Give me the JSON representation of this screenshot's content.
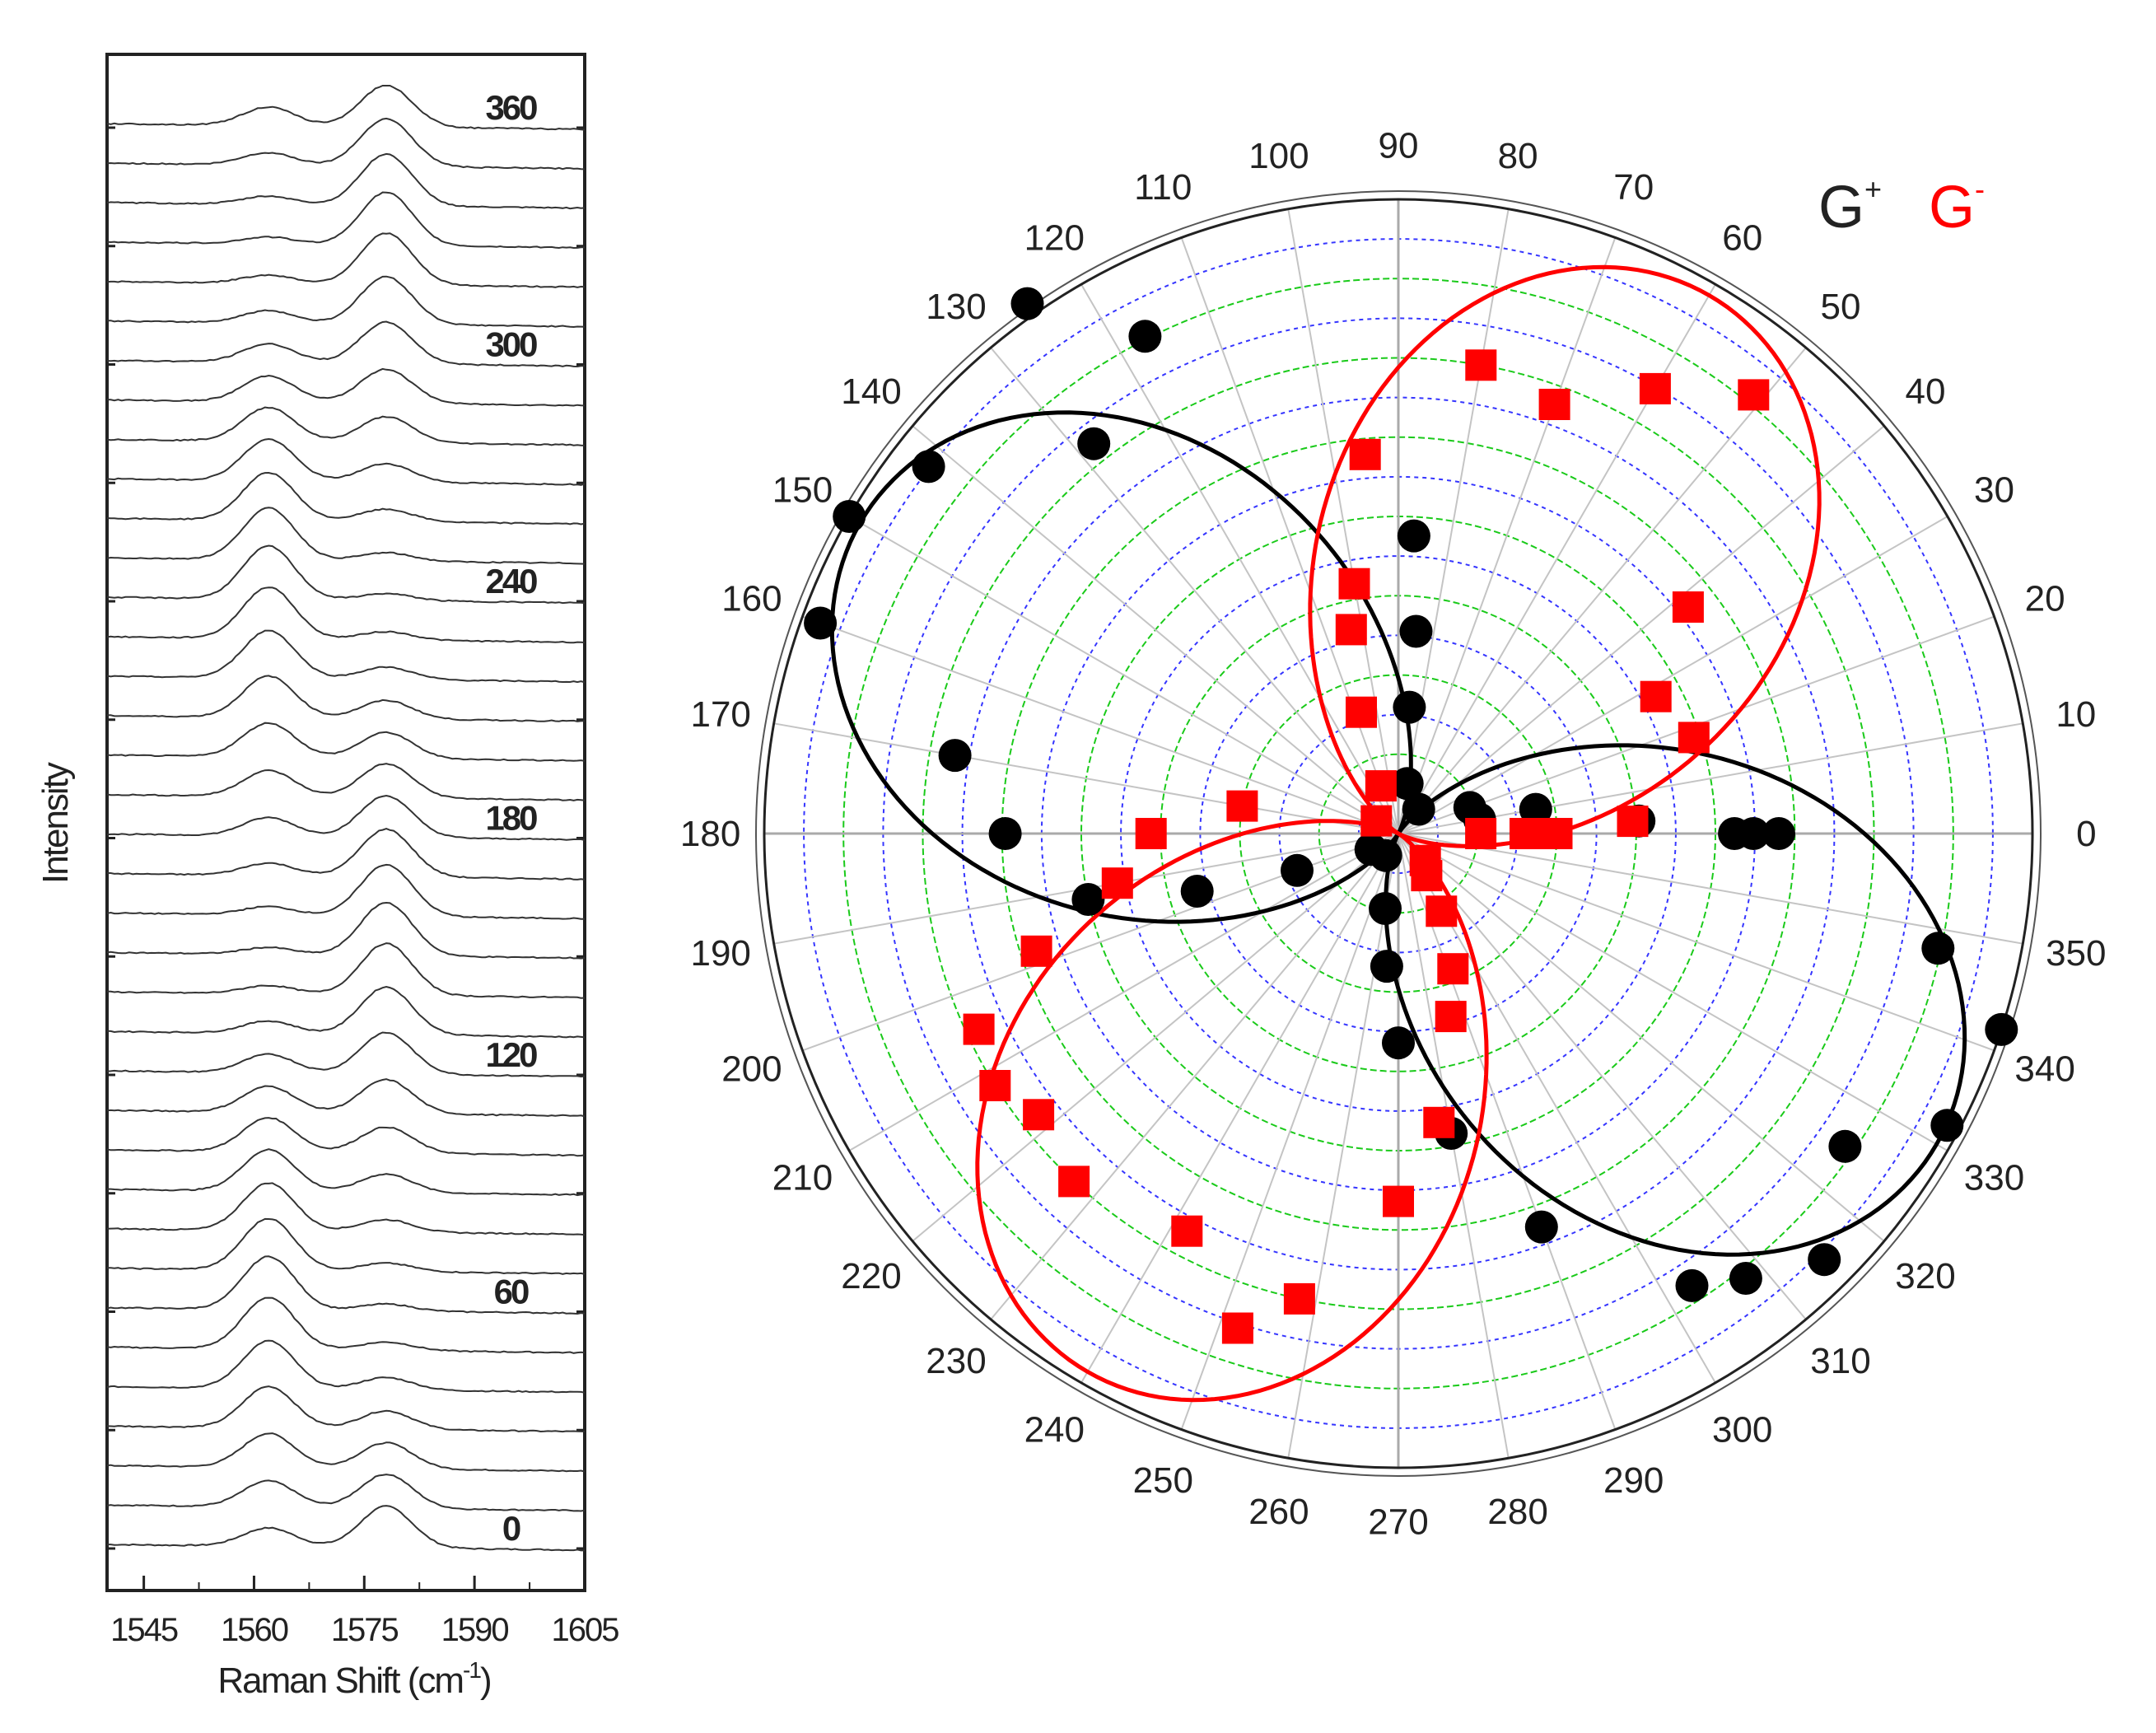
{
  "chart_data": [
    {
      "type": "line",
      "name": "raman-spectra",
      "xlabel": "Raman Shift (cm",
      "xlabel_superscript": "-1",
      "xlabel_close": ")",
      "ylabel": "Intensity",
      "xlim": [
        1540,
        1605
      ],
      "xticks": [
        1545,
        1560,
        1575,
        1590,
        1605
      ],
      "xtick_labels": [
        "1545",
        "1560",
        "1575",
        "1590",
        "1605"
      ],
      "angle_step_deg": 10,
      "angles_deg": [
        0,
        10,
        20,
        30,
        40,
        50,
        60,
        70,
        80,
        90,
        100,
        110,
        120,
        130,
        140,
        150,
        160,
        170,
        180,
        190,
        200,
        210,
        220,
        230,
        240,
        250,
        260,
        270,
        280,
        290,
        300,
        310,
        320,
        330,
        340,
        350,
        360
      ],
      "labeled_angles": [
        "0",
        "60",
        "120",
        "180",
        "240",
        "300",
        "360"
      ],
      "peaks_cm": {
        "G_minus": 1562,
        "G_plus": 1578
      },
      "peak_width_cm": 3.5,
      "baseline": 0.2,
      "intensity_scale": 1.0
    },
    {
      "type": "scatter",
      "name": "polar-intensity",
      "legend": {
        "g_plus": "G",
        "g_plus_sup": "+",
        "g_minus": "G",
        "g_minus_sup": "-",
        "g_plus_color": "#000000",
        "g_minus_color": "#ff0000"
      },
      "radial_max": 1.0,
      "rings": 16,
      "angle_labels": [
        "0",
        "10",
        "20",
        "30",
        "40",
        "50",
        "60",
        "70",
        "80",
        "90",
        "100",
        "110",
        "120",
        "130",
        "140",
        "150",
        "160",
        "170",
        "180",
        "190",
        "200",
        "210",
        "220",
        "230",
        "240",
        "250",
        "260",
        "270",
        "280",
        "290",
        "300",
        "310",
        "320",
        "330",
        "340",
        "350"
      ],
      "series": [
        {
          "name": "G+",
          "color": "#000000",
          "marker": "circle",
          "fit": {
            "amplitude": 0.98,
            "phase_deg": 150
          },
          "points": [
            [
              0,
              0.53
            ],
            [
              0,
              0.56
            ],
            [
              0,
              0.6
            ],
            [
              3,
              0.38
            ],
            [
              10,
              0.13
            ],
            [
              10,
              0.22
            ],
            [
              20,
              0.12
            ],
            [
              50,
              0.05
            ],
            [
              80,
              0.08
            ],
            [
              85,
              0.2
            ],
            [
              85,
              0.32
            ],
            [
              87,
              0.47
            ],
            [
              117,
              0.88
            ],
            [
              125,
              1.02
            ],
            [
              128,
              0.78
            ],
            [
              142,
              0.94
            ],
            [
              150,
              1.0
            ],
            [
              160,
              0.97
            ],
            [
              170,
              0.71
            ],
            [
              180,
              0.62
            ],
            [
              192,
              0.5
            ],
            [
              196,
              0.33
            ],
            [
              200,
              0.17
            ],
            [
              210,
              0.05
            ],
            [
              240,
              0.04
            ],
            [
              260,
              0.12
            ],
            [
              265,
              0.21
            ],
            [
              270,
              0.33
            ],
            [
              280,
              0.48
            ],
            [
              290,
              0.66
            ],
            [
              303,
              0.85
            ],
            [
              308,
              0.89
            ],
            [
              315,
              0.95
            ],
            [
              325,
              0.86
            ],
            [
              332,
              0.98
            ],
            [
              342,
              1.0
            ],
            [
              348,
              0.87
            ]
          ]
        },
        {
          "name": "G-",
          "color": "#ff0000",
          "marker": "square",
          "fit": {
            "amplitude": 0.98,
            "phase_deg": 60
          },
          "points": [
            [
              0,
              0.13
            ],
            [
              0,
              0.2
            ],
            [
              0,
              0.23
            ],
            [
              0,
              0.25
            ],
            [
              3,
              0.37
            ],
            [
              18,
              0.49
            ],
            [
              28,
              0.46
            ],
            [
              38,
              0.58
            ],
            [
              51,
              0.89
            ],
            [
              60,
              0.81
            ],
            [
              70,
              0.72
            ],
            [
              80,
              0.75
            ],
            [
              95,
              0.6
            ],
            [
              100,
              0.4
            ],
            [
              103,
              0.33
            ],
            [
              107,
              0.2
            ],
            [
              110,
              0.08
            ],
            [
              150,
              0.04
            ],
            [
              170,
              0.25
            ],
            [
              180,
              0.39
            ],
            [
              190,
              0.45
            ],
            [
              198,
              0.6
            ],
            [
              205,
              0.73
            ],
            [
              212,
              0.75
            ],
            [
              218,
              0.72
            ],
            [
              227,
              0.75
            ],
            [
              242,
              0.71
            ],
            [
              252,
              0.82
            ],
            [
              258,
              0.75
            ],
            [
              270,
              0.58
            ],
            [
              278,
              0.46
            ],
            [
              286,
              0.3
            ],
            [
              292,
              0.23
            ],
            [
              299,
              0.14
            ],
            [
              304,
              0.08
            ],
            [
              315,
              0.06
            ]
          ]
        }
      ]
    }
  ]
}
